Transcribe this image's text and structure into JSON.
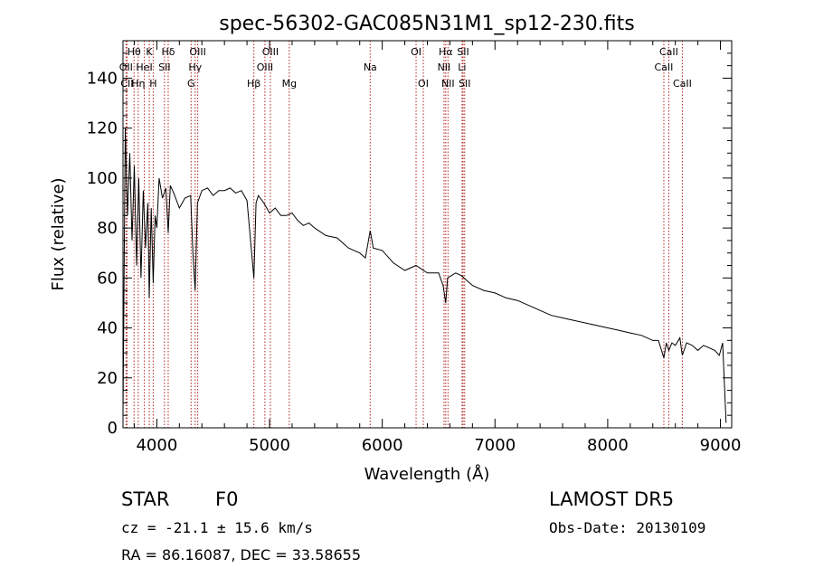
{
  "chart_data": {
    "type": "line",
    "title": "spec-56302-GAC085N31M1_sp12-230.fits",
    "xlabel": "Wavelength (Å)",
    "ylabel": "Flux (relative)",
    "xlim": [
      3700,
      9100
    ],
    "ylim": [
      0,
      155
    ],
    "xticks": [
      4000,
      5000,
      6000,
      7000,
      8000,
      9000
    ],
    "yticks": [
      0,
      20,
      40,
      60,
      80,
      100,
      120,
      140
    ],
    "grid": false,
    "legend": "none",
    "series": [
      {
        "x": [
          3700,
          3720,
          3740,
          3760,
          3780,
          3800,
          3820,
          3840,
          3860,
          3880,
          3900,
          3920,
          3933,
          3950,
          3968,
          3985,
          4000,
          4020,
          4050,
          4080,
          4101,
          4120,
          4150,
          4200,
          4250,
          4300,
          4320,
          4340,
          4360,
          4400,
          4450,
          4500,
          4550,
          4600,
          4650,
          4700,
          4750,
          4800,
          4861,
          4880,
          4900,
          4950,
          5000,
          5050,
          5100,
          5150,
          5200,
          5250,
          5300,
          5350,
          5400,
          5500,
          5600,
          5700,
          5800,
          5850,
          5893,
          5920,
          6000,
          6100,
          6200,
          6300,
          6400,
          6500,
          6540,
          6563,
          6580,
          6650,
          6700,
          6800,
          6900,
          7000,
          7100,
          7200,
          7300,
          7400,
          7500,
          7600,
          7700,
          7800,
          7900,
          8000,
          8100,
          8200,
          8300,
          8400,
          8450,
          8498,
          8520,
          8542,
          8570,
          8600,
          8640,
          8662,
          8700,
          8750,
          8800,
          8850,
          8900,
          8950,
          8990,
          9020,
          9050
        ],
        "y": [
          5,
          120,
          85,
          110,
          75,
          105,
          65,
          100,
          60,
          95,
          72,
          90,
          52,
          88,
          58,
          85,
          80,
          100,
          92,
          96,
          78,
          97,
          94,
          88,
          92,
          93,
          70,
          55,
          90,
          95,
          96,
          93,
          95,
          95,
          96,
          94,
          95,
          91,
          60,
          90,
          93,
          90,
          86,
          88,
          85,
          85,
          86,
          83,
          81,
          82,
          80,
          77,
          76,
          72,
          70,
          68,
          79,
          72,
          71,
          66,
          63,
          65,
          62,
          62,
          57,
          50,
          60,
          62,
          61,
          57,
          55,
          54,
          52,
          51,
          49,
          47,
          45,
          44,
          43,
          42,
          41,
          40,
          39,
          38,
          37,
          35,
          35,
          28,
          34,
          31,
          34,
          33,
          36,
          29,
          34,
          33,
          31,
          33,
          32,
          31,
          29,
          34,
          2
        ]
      }
    ],
    "lines": [
      {
        "label": "Hθ",
        "x": 3798,
        "row": 0
      },
      {
        "label": "OII",
        "x": 3727,
        "row": 1
      },
      {
        "label": "CII",
        "x": 3735,
        "row": 2
      },
      {
        "label": "Hη",
        "x": 3835,
        "row": 2
      },
      {
        "label": "K",
        "x": 3933,
        "row": 0
      },
      {
        "label": "HeI",
        "x": 3889,
        "row": 1
      },
      {
        "label": "H",
        "x": 3968,
        "row": 2
      },
      {
        "label": "Hδ",
        "x": 4101,
        "row": 0
      },
      {
        "label": "SII",
        "x": 4068,
        "row": 1
      },
      {
        "label": "OIII",
        "x": 4363,
        "row": 0
      },
      {
        "label": "Hγ",
        "x": 4340,
        "row": 1
      },
      {
        "label": "G",
        "x": 4304,
        "row": 2
      },
      {
        "label": "Hβ",
        "x": 4861,
        "row": 2
      },
      {
        "label": "OIII",
        "x": 5007,
        "row": 0
      },
      {
        "label": "OIII",
        "x": 4959,
        "row": 1
      },
      {
        "label": "Mg",
        "x": 5175,
        "row": 2
      },
      {
        "label": "Na",
        "x": 5893,
        "row": 1
      },
      {
        "label": "OI",
        "x": 6300,
        "row": 0
      },
      {
        "label": "OI",
        "x": 6364,
        "row": 2
      },
      {
        "label": "Hα",
        "x": 6563,
        "row": 0
      },
      {
        "label": "NII",
        "x": 6548,
        "row": 1
      },
      {
        "label": "NII",
        "x": 6583,
        "row": 2
      },
      {
        "label": "SII",
        "x": 6717,
        "row": 0
      },
      {
        "label": "Li",
        "x": 6708,
        "row": 1
      },
      {
        "label": "SII",
        "x": 6731,
        "row": 2
      },
      {
        "label": "CaII",
        "x": 8542,
        "row": 0
      },
      {
        "label": "CaII",
        "x": 8498,
        "row": 1
      },
      {
        "label": "CaII",
        "x": 8662,
        "row": 2
      }
    ]
  },
  "info": {
    "class_label": "STAR",
    "subclass": "F0",
    "survey": "LAMOST DR5",
    "cz": "cz = -21.1 ± 15.6 km/s",
    "obs_date": "Obs-Date: 20130109",
    "coords": "RA =  86.16087, DEC =  33.58655"
  },
  "colors": {
    "line_marker": "#b22222",
    "spectrum": "#000000",
    "axes": "#000000"
  }
}
